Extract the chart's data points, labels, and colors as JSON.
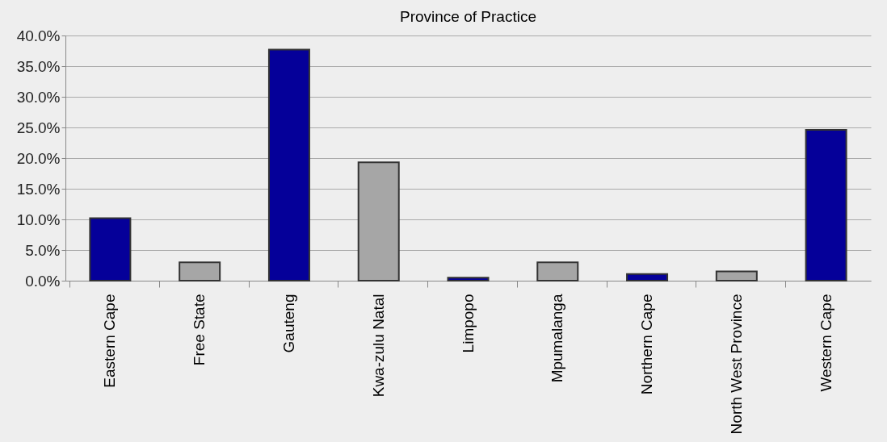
{
  "chart_data": {
    "type": "bar",
    "title": "Province of Practice",
    "categories": [
      "Eastern Cape",
      "Free State",
      "Gauteng",
      "Kwa-zulu Natal",
      "Limpopo",
      "Mpumalanga",
      "Northern Cape",
      "North West Province",
      "Western Cape"
    ],
    "values": [
      10.2,
      3.0,
      37.7,
      19.3,
      0.5,
      3.0,
      1.1,
      1.5,
      24.6
    ],
    "colors": [
      "#050099",
      "#a6a6a6",
      "#050099",
      "#a6a6a6",
      "#050099",
      "#a6a6a6",
      "#050099",
      "#a6a6a6",
      "#050099"
    ],
    "ylim": [
      0,
      40
    ],
    "yticks": [
      {
        "value": 0,
        "label": "0.0%"
      },
      {
        "value": 5,
        "label": "5.0%"
      },
      {
        "value": 10,
        "label": "10.0%"
      },
      {
        "value": 15,
        "label": "15.0%"
      },
      {
        "value": 20,
        "label": "20.0%"
      },
      {
        "value": 25,
        "label": "25.0%"
      },
      {
        "value": 30,
        "label": "30.0%"
      },
      {
        "value": 35,
        "label": "35.0%"
      },
      {
        "value": 40,
        "label": "40.0%"
      }
    ],
    "grid": "y"
  }
}
